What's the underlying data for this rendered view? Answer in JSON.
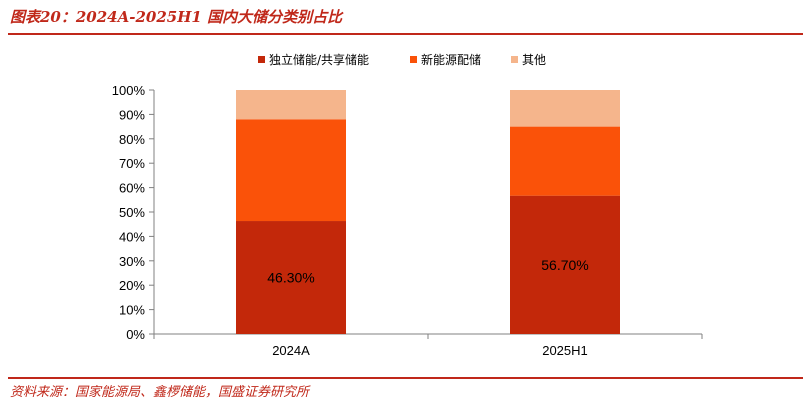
{
  "figure_title": "图表20：2024A-2025H1 国内大储分类别占比",
  "source_note": "资料来源：国家能源局、鑫椤储能，国盛证券研究所",
  "colors": {
    "accent": "#c0281a"
  },
  "chart_data": {
    "type": "bar",
    "stacked": true,
    "categories": [
      "2024A",
      "2025H1"
    ],
    "series": [
      {
        "name": "独立储能/共享储能",
        "color": "#c3280a",
        "values": [
          46.3,
          56.7
        ],
        "labels": [
          "46.30%",
          "56.70%"
        ]
      },
      {
        "name": "新能源配储",
        "color": "#fa5209",
        "values": [
          41.7,
          28.3
        ],
        "labels": [
          "",
          ""
        ]
      },
      {
        "name": "其他",
        "color": "#f5b58c",
        "values": [
          12.0,
          15.0
        ],
        "labels": [
          "",
          ""
        ]
      }
    ],
    "ylim": [
      0,
      100
    ],
    "yticks": [
      "0%",
      "10%",
      "20%",
      "30%",
      "40%",
      "50%",
      "60%",
      "70%",
      "80%",
      "90%",
      "100%"
    ],
    "legend_position": "top",
    "grid": false
  }
}
